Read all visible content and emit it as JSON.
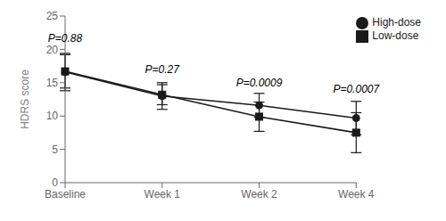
{
  "chart_data": {
    "type": "line",
    "categories": [
      "Baseline",
      "Week 1",
      "Week 2",
      "Week 4"
    ],
    "series": [
      {
        "name": "High-dose",
        "color": "#1a1a1a",
        "marker": "circle",
        "values": [
          16.6,
          13.0,
          11.6,
          9.7
        ],
        "errors": [
          2.8,
          2.0,
          1.8,
          2.5
        ]
      },
      {
        "name": "Low-dose",
        "color": "#1a1a1a",
        "marker": "square",
        "values": [
          16.7,
          13.2,
          9.9,
          7.5
        ],
        "errors": [
          2.5,
          1.5,
          2.2,
          3.0
        ]
      }
    ],
    "annotations": [
      {
        "text": "P=0.88",
        "x": "Baseline",
        "y": 20.5
      },
      {
        "text": "P=0.27",
        "x": "Week 1",
        "y": 15.8
      },
      {
        "text": "P=0.0009",
        "x": "Week 2",
        "y": 13.8
      },
      {
        "text": "P=0.0007",
        "x": "Week 4",
        "y": 12.8
      }
    ],
    "ylabel": "HDRS score",
    "ylim": [
      0,
      25
    ],
    "yticks": [
      0,
      5,
      10,
      15,
      20,
      25
    ],
    "legend": "upper right",
    "grid": false
  }
}
